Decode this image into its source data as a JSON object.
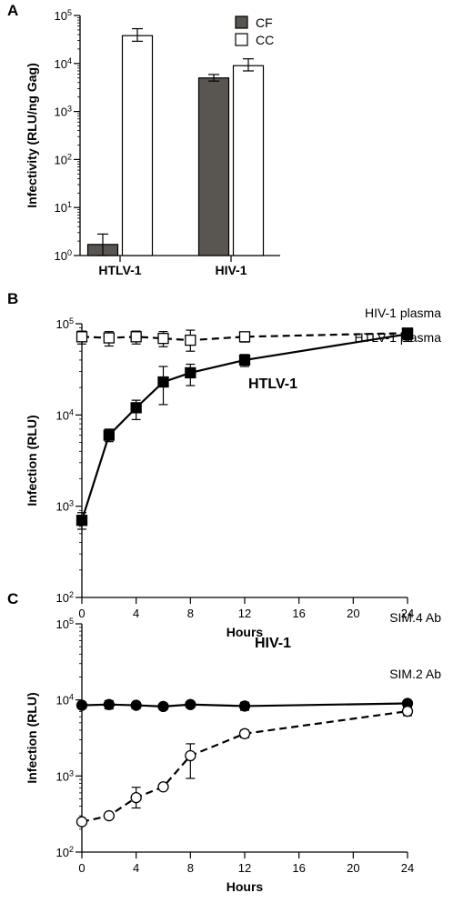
{
  "chart_data": [
    {
      "panel": "A",
      "type": "bar",
      "ylabel": "Infectivity (RLU/ng Gag)",
      "yscale": "log",
      "ylim": [
        1,
        100000
      ],
      "yticks": [
        {
          "base": "10",
          "exp": "0",
          "value": 1
        },
        {
          "base": "10",
          "exp": "1",
          "value": 10
        },
        {
          "base": "10",
          "exp": "2",
          "value": 100
        },
        {
          "base": "10",
          "exp": "3",
          "value": 1000
        },
        {
          "base": "10",
          "exp": "4",
          "value": 10000
        },
        {
          "base": "10",
          "exp": "5",
          "value": 100000
        }
      ],
      "categories": [
        "HTLV-1",
        "HIV-1"
      ],
      "legend_position": "top-right",
      "series": [
        {
          "name": "CF",
          "color": "#595651",
          "values": [
            1.7,
            5000
          ],
          "err_low": [
            1.0,
            4300
          ],
          "err_high": [
            2.8,
            5900
          ]
        },
        {
          "name": "CC",
          "color": "#ffffff",
          "values": [
            38000,
            9000
          ],
          "err_low": [
            29000,
            7000
          ],
          "err_high": [
            53000,
            12500
          ]
        }
      ]
    },
    {
      "panel": "B",
      "type": "line",
      "title": "HTLV-1",
      "xlabel": "Hours",
      "ylabel": "Infection (RLU)",
      "yscale": "log",
      "ylim": [
        100,
        100000
      ],
      "xlim": [
        0,
        24
      ],
      "xticks": [
        "0",
        "4",
        "8",
        "12",
        "16",
        "20",
        "24"
      ],
      "yticks": [
        {
          "base": "10",
          "exp": "2",
          "value": 100
        },
        {
          "base": "10",
          "exp": "3",
          "value": 1000
        },
        {
          "base": "10",
          "exp": "4",
          "value": 10000
        },
        {
          "base": "10",
          "exp": "5",
          "value": 100000
        }
      ],
      "series": [
        {
          "name": "HIV-1 plasma",
          "marker": "square-open",
          "dash": "dashed",
          "x": [
            0,
            2,
            4,
            6,
            8,
            12,
            24
          ],
          "y": [
            72000,
            70000,
            72000,
            69000,
            66000,
            72000,
            79000
          ],
          "err_low": [
            60000,
            57000,
            60000,
            56000,
            50000,
            63000,
            67000
          ],
          "err_high": [
            83000,
            82000,
            83000,
            82000,
            85000,
            79000,
            88000
          ]
        },
        {
          "name": "HTLV-1 plasma",
          "marker": "square-filled",
          "dash": "solid",
          "x": [
            0,
            2,
            4,
            6,
            8,
            12,
            24
          ],
          "y": [
            700,
            6000,
            12000,
            23000,
            29000,
            40000,
            77000
          ],
          "err_low": [
            560,
            5100,
            8900,
            13000,
            21000,
            34000,
            64000
          ],
          "err_high": [
            850,
            7000,
            14500,
            34000,
            36000,
            46000,
            89000
          ]
        }
      ]
    },
    {
      "panel": "C",
      "type": "line",
      "title": "HIV-1",
      "xlabel": "Hours",
      "ylabel": "Infection (RLU)",
      "yscale": "log",
      "ylim": [
        100,
        100000
      ],
      "xlim": [
        0,
        24
      ],
      "xticks": [
        "0",
        "4",
        "8",
        "12",
        "16",
        "20",
        "24"
      ],
      "yticks": [
        {
          "base": "10",
          "exp": "2",
          "value": 100
        },
        {
          "base": "10",
          "exp": "3",
          "value": 1000
        },
        {
          "base": "10",
          "exp": "4",
          "value": 10000
        },
        {
          "base": "10",
          "exp": "5",
          "value": 100000
        }
      ],
      "series": [
        {
          "name": "SIM.4 Ab",
          "marker": "circle-filled",
          "dash": "solid",
          "x": [
            0,
            2,
            4,
            6,
            8,
            12,
            24
          ],
          "y": [
            8500,
            8700,
            8500,
            8200,
            8700,
            8300,
            9000
          ],
          "err_low": [
            7800,
            7600,
            7700,
            7500,
            8000,
            7300,
            8300
          ],
          "err_high": [
            9200,
            9800,
            9300,
            8900,
            9400,
            9300,
            9700
          ]
        },
        {
          "name": "SIM.2 Ab",
          "marker": "circle-open",
          "dash": "dashed",
          "x": [
            0,
            2,
            4,
            6,
            8,
            12,
            24
          ],
          "y": [
            250,
            300,
            520,
            720,
            1850,
            3600,
            7100
          ],
          "err_low": [
            230,
            280,
            380,
            670,
            930,
            3200,
            6200
          ],
          "err_high": [
            270,
            320,
            710,
            770,
            2650,
            4000,
            8000
          ]
        }
      ]
    }
  ]
}
